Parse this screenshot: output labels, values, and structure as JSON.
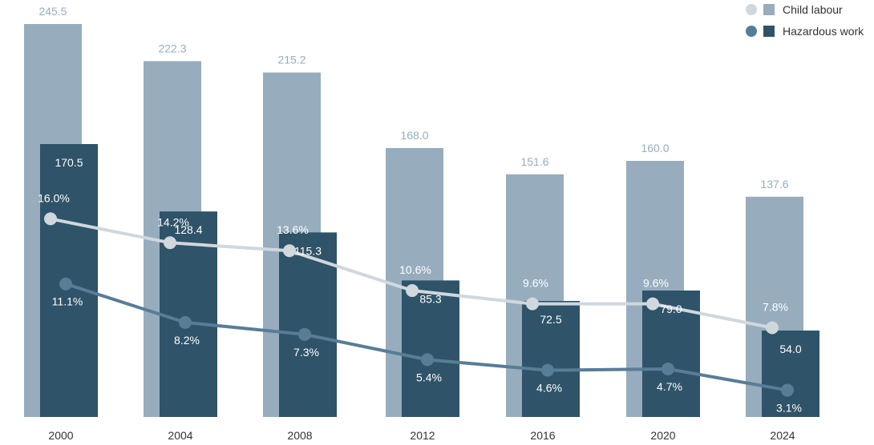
{
  "colors": {
    "child_bar": "#97adbd",
    "child_line": "#d0d7dd",
    "hazard_bar": "#2f5368",
    "hazard_line": "#587d96",
    "label_light": "#97adbd",
    "label_white": "#ffffff",
    "axis_text": "#333333"
  },
  "legend": {
    "child_labour": "Child labour",
    "hazardous_work": "Hazardous work"
  },
  "chart_data": {
    "type": "bar",
    "categories": [
      "2000",
      "2004",
      "2008",
      "2012",
      "2016",
      "2020",
      "2024"
    ],
    "ylim": [
      0,
      270
    ],
    "series": [
      {
        "name": "Child labour",
        "kind": "bar",
        "values": [
          245.5,
          222.3,
          215.2,
          168.0,
          151.6,
          160.0,
          137.6
        ],
        "labels": [
          "245.5",
          "222.3",
          "215.2",
          "168.0",
          "151.6",
          "160.0",
          "137.6"
        ]
      },
      {
        "name": "Hazardous work",
        "kind": "bar",
        "values": [
          170.5,
          128.4,
          115.3,
          85.3,
          72.5,
          79.0,
          54.0
        ],
        "labels": [
          "170.5",
          "128.4",
          "115.3",
          "85.3",
          "72.5",
          "79.0",
          "54.0"
        ]
      },
      {
        "name": "Child labour",
        "kind": "line",
        "unit": "%",
        "values": [
          16.0,
          14.2,
          13.6,
          10.6,
          9.6,
          9.6,
          7.8
        ],
        "labels": [
          "16.0%",
          "14.2%",
          "13.6%",
          "10.6%",
          "9.6%",
          "9.6%",
          "7.8%"
        ]
      },
      {
        "name": "Hazardous work",
        "kind": "line",
        "unit": "%",
        "values": [
          11.1,
          8.2,
          7.3,
          5.4,
          4.6,
          4.7,
          3.1
        ],
        "labels": [
          "11.1%",
          "8.2%",
          "7.3%",
          "5.4%",
          "4.6%",
          "4.7%",
          "3.1%"
        ]
      }
    ]
  }
}
